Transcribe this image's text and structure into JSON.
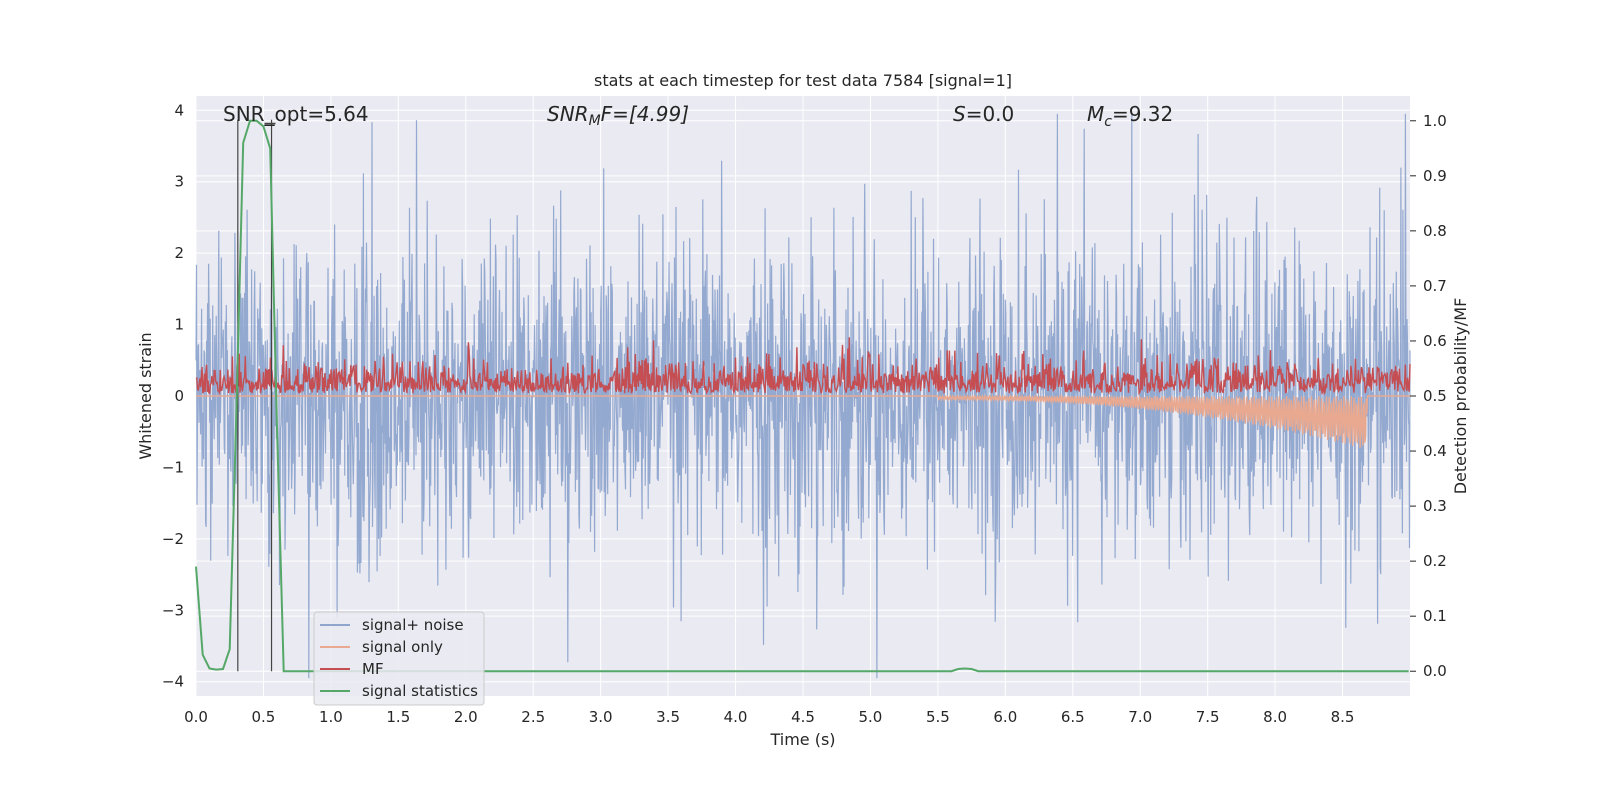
{
  "chart_data": {
    "type": "line",
    "title": "stats at each timestep for test data 7584 [signal=1]",
    "xlabel": "Time (s)",
    "ylabel": "Whitened strain",
    "ylabel_right": "Detection probability/MF",
    "xlim": [
      0,
      9.0
    ],
    "ylim": [
      -4.2,
      4.2
    ],
    "ylim_right": [
      -0.045,
      1.045
    ],
    "x_ticks": [
      "0.0",
      "0.5",
      "1.0",
      "1.5",
      "2.0",
      "2.5",
      "3.0",
      "3.5",
      "4.0",
      "4.5",
      "5.0",
      "5.5",
      "6.0",
      "6.5",
      "7.0",
      "7.5",
      "8.0",
      "8.5"
    ],
    "y_ticks": [
      "4",
      "3",
      "2",
      "1",
      "0",
      "−1",
      "−2",
      "−3",
      "−4"
    ],
    "y_ticks_right": [
      "1.0",
      "0.9",
      "0.8",
      "0.7",
      "0.6",
      "0.5",
      "0.4",
      "0.3",
      "0.2",
      "0.1",
      "0.0"
    ],
    "grid": true,
    "legend_position": "lower-left",
    "annotations": [
      {
        "text": "SNR_opt=5.64"
      },
      {
        "pre": "SNR",
        "sub": "M",
        "post": "F=[4.99]"
      },
      {
        "pre": "S",
        "sub": "",
        "post": "=0.0"
      },
      {
        "pre": "M",
        "sub": "c",
        "post": "=9.32"
      }
    ],
    "markers": [
      0.31,
      0.56
    ],
    "series": [
      {
        "name": "signal+ noise",
        "color": "#8fa5cd",
        "axis": "left",
        "description": "whitened noise, amplitude envelope approx ±2.5, spikes to about ±4"
      },
      {
        "name": "signal only",
        "color": "#e8a990",
        "axis": "left",
        "chirp": {
          "start": 5.5,
          "end": 8.68,
          "min": -0.75,
          "max": -0.05
        }
      },
      {
        "name": "MF",
        "color": "#c44e52",
        "axis": "right",
        "description": "matched filter output fluctuating between about 0.48 and 0.6"
      },
      {
        "name": "signal statistics",
        "color": "#55a868",
        "axis": "right",
        "x": [
          0.0,
          0.05,
          0.1,
          0.15,
          0.2,
          0.25,
          0.3,
          0.35,
          0.4,
          0.45,
          0.5,
          0.55,
          0.6,
          0.65,
          0.7,
          0.75,
          5.6,
          5.65,
          5.7,
          5.75,
          5.8,
          8.99
        ],
        "y": [
          0.19,
          0.03,
          0.005,
          0.003,
          0.004,
          0.04,
          0.48,
          0.96,
          1.0,
          1.0,
          0.99,
          0.95,
          0.45,
          0.0,
          0.0,
          0.0,
          0.0,
          0.004,
          0.005,
          0.004,
          0.0,
          0.0
        ]
      }
    ]
  }
}
